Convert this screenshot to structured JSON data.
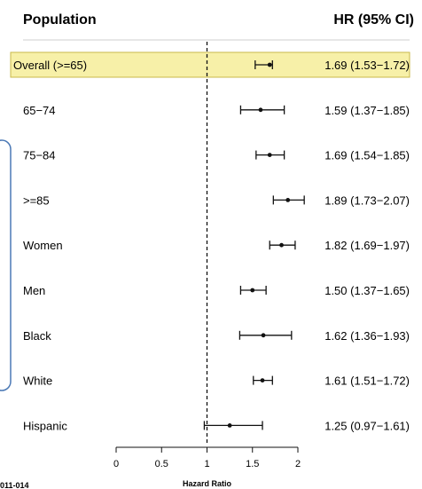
{
  "chart_data": {
    "type": "forest",
    "col_population": "Population",
    "col_hr": "HR (95% CI)",
    "xlabel": "Hazard Ratio",
    "xlim": [
      0,
      2.1
    ],
    "xticks": [
      "0",
      "0.5",
      "1",
      "1.5",
      "2"
    ],
    "reference_line": 1,
    "rows": [
      {
        "label": "Overall (>=65)",
        "hr": 1.69,
        "lo": 1.53,
        "hi": 1.72,
        "text": "1.69 (1.53−1.72)",
        "highlight": true
      },
      {
        "label": "65−74",
        "hr": 1.59,
        "lo": 1.37,
        "hi": 1.85,
        "text": "1.59 (1.37−1.85)"
      },
      {
        "label": "75−84",
        "hr": 1.69,
        "lo": 1.54,
        "hi": 1.85,
        "text": "1.69 (1.54−1.85)"
      },
      {
        "label": ">=85",
        "hr": 1.89,
        "lo": 1.73,
        "hi": 2.07,
        "text": "1.89 (1.73−2.07)"
      },
      {
        "label": "Women",
        "hr": 1.82,
        "lo": 1.69,
        "hi": 1.97,
        "text": "1.82 (1.69−1.97)"
      },
      {
        "label": "Men",
        "hr": 1.5,
        "lo": 1.37,
        "hi": 1.65,
        "text": "1.50 (1.37−1.65)"
      },
      {
        "label": "Black",
        "hr": 1.62,
        "lo": 1.36,
        "hi": 1.93,
        "text": "1.62 (1.36−1.93)"
      },
      {
        "label": "White",
        "hr": 1.61,
        "lo": 1.51,
        "hi": 1.72,
        "text": "1.61 (1.51−1.72)"
      },
      {
        "label": "Hispanic",
        "hr": 1.25,
        "lo": 0.97,
        "hi": 1.61,
        "text": "1.25 (0.97−1.61)"
      }
    ]
  },
  "footnote": "011-014",
  "colors": {
    "highlight_fill": "#f7f0a8",
    "highlight_stroke": "#c9b84a",
    "side_box": "#4a78b5",
    "ink": "#111111"
  }
}
